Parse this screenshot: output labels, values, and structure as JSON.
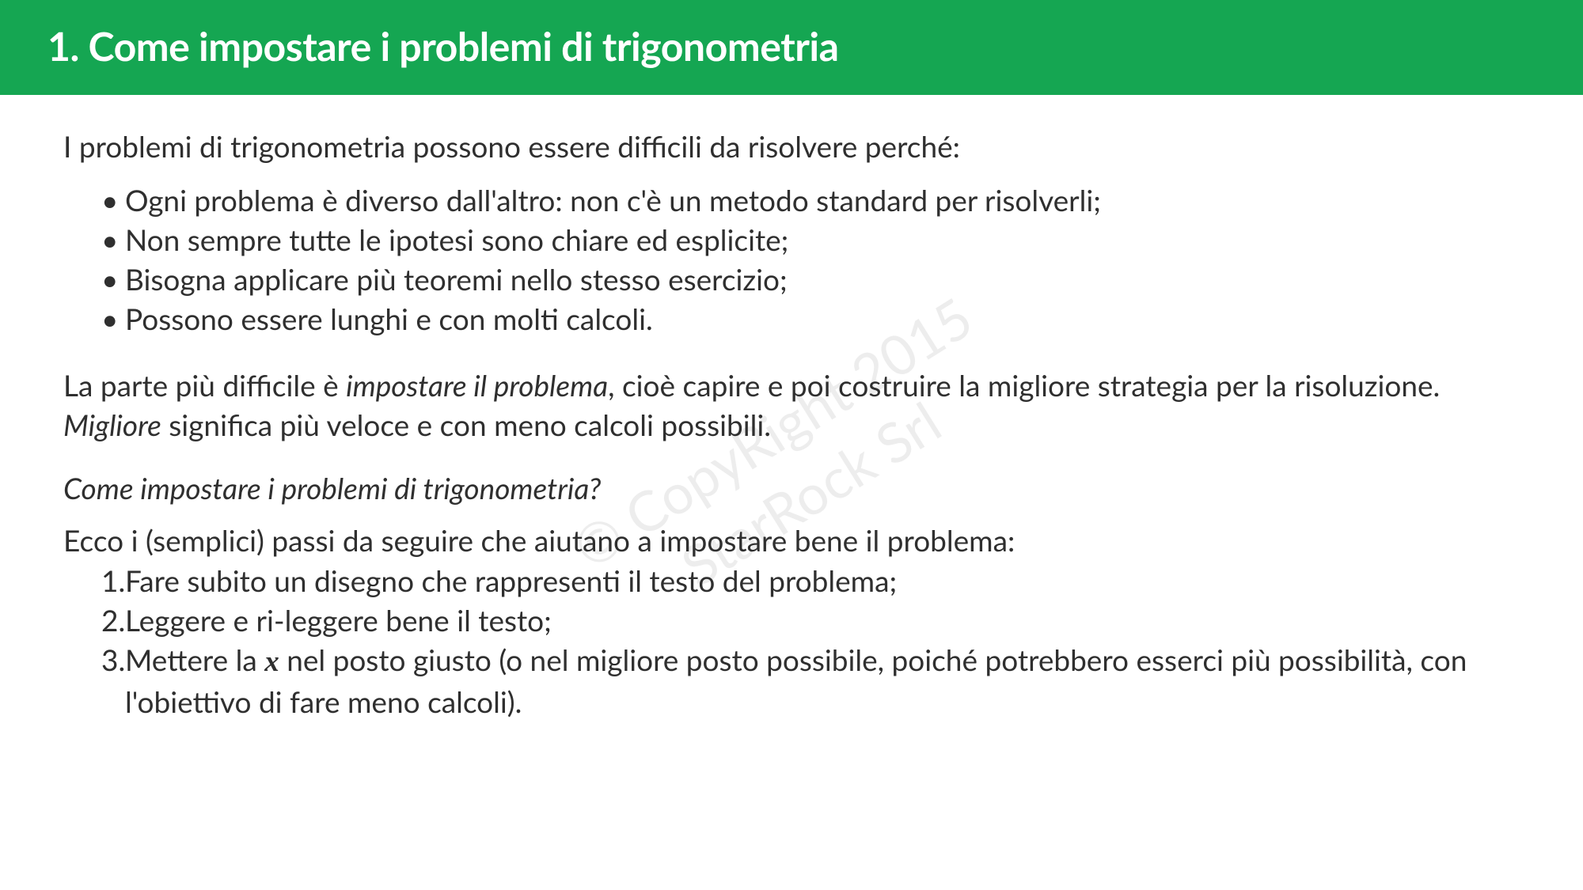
{
  "colors": {
    "header_bg": "#15a652",
    "header_text": "#ffffff",
    "body_text": "#2f2f2f",
    "background": "#ffffff",
    "watermark": "rgba(0,0,0,0.07)"
  },
  "typography": {
    "title_fontsize": 50,
    "body_fontsize": 37,
    "line_height": 1.35
  },
  "header": {
    "title": "1. Come impostare i problemi di trigonometria"
  },
  "intro": "I problemi di trigonometria possono essere difficili da risolvere perché:",
  "bullets": [
    "Ogni problema è diverso dall'altro: non c'è un metodo standard per risolverli;",
    "Non sempre tutte le ipotesi sono chiare ed esplicite;",
    "Bisogna applicare più teoremi nello stesso esercizio;",
    "Possono essere lunghi e con molti calcoli."
  ],
  "para2": {
    "pre": "La parte più difficile è ",
    "em1": "impostare il problema",
    "mid": ", cioè capire e poi costruire la migliore strategia per la risoluzione. ",
    "em2": "Migliore",
    "post": " significa più veloce e con meno calcoli possibili."
  },
  "subheading": "Come impostare i problemi di trigonometria?",
  "ecco": "Ecco i (semplici) passi da seguire che aiutano a impostare bene il problema:",
  "steps": {
    "s1": "Fare subito un disegno che rappresenti il testo del problema;",
    "s2": "Leggere e ri-leggere bene il testo;",
    "s3_pre": "Mettere la ",
    "s3_x": "x",
    "s3_post": " nel posto giusto (o nel migliore posto possibile, poiché potrebbero esserci più possibilità, con l'obiettivo di fare meno calcoli)."
  },
  "watermark": {
    "line1": "© CopyRight 2015",
    "line2": "StarRock Srl"
  }
}
